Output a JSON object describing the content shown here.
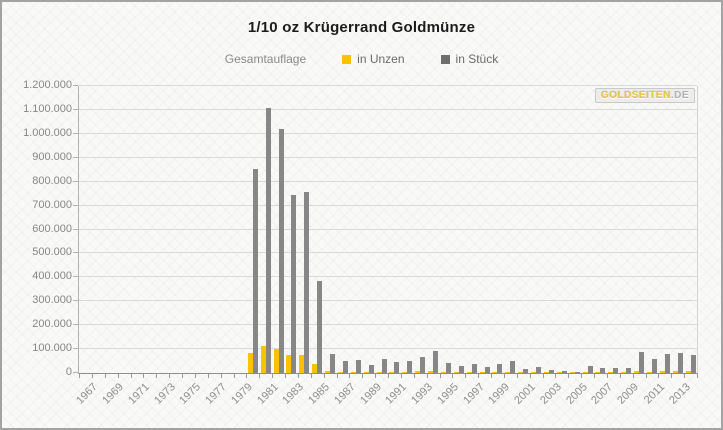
{
  "watermark": {
    "gold": "GOLDSEITEN",
    "de": ".DE"
  },
  "legend": {
    "label": "Gesamtauflage"
  },
  "chart_data": {
    "type": "bar",
    "title": "1/10 oz Krügerrand Goldmünze",
    "subtitle_legend_label": "Gesamtauflage",
    "xlabel": "",
    "ylabel": "",
    "grid": true,
    "legend_position": "top-center",
    "ylim": [
      0,
      1200000
    ],
    "y_tick_interval": 100000,
    "y_tick_labels_bottom_to_top": [
      "0",
      "100.000",
      "200.000",
      "300.000",
      "400.000",
      "500.000",
      "600.000",
      "700.000",
      "800.000",
      "900.000",
      "1.000.000",
      "1.100.000",
      "1.200.000"
    ],
    "x": [
      1967,
      1968,
      1969,
      1970,
      1971,
      1972,
      1973,
      1974,
      1975,
      1976,
      1977,
      1978,
      1979,
      1980,
      1981,
      1982,
      1983,
      1984,
      1985,
      1986,
      1987,
      1988,
      1989,
      1990,
      1991,
      1992,
      1993,
      1994,
      1995,
      1996,
      1997,
      1998,
      1999,
      2000,
      2001,
      2002,
      2003,
      2004,
      2005,
      2006,
      2007,
      2008,
      2009,
      2010,
      2011,
      2012,
      2013,
      2014
    ],
    "x_labeled_years": [
      1967,
      1969,
      1971,
      1973,
      1975,
      1977,
      1979,
      1981,
      1983,
      1985,
      1987,
      1989,
      1991,
      1993,
      1995,
      1997,
      1999,
      2001,
      2003,
      2005,
      2007,
      2009,
      2011,
      2013
    ],
    "series": [
      {
        "name": "in Unzen",
        "color": "#FCC200",
        "values": [
          null,
          null,
          null,
          null,
          null,
          null,
          null,
          null,
          null,
          null,
          null,
          null,
          null,
          85500,
          111000,
          102000,
          74500,
          75700,
          38500,
          7800,
          5200,
          5600,
          3500,
          5700,
          4400,
          5100,
          6700,
          9000,
          4000,
          2800,
          3800,
          2600,
          3800,
          4900,
          1700,
          2600,
          1300,
          900,
          500,
          3000,
          2300,
          2200,
          1900,
          8800,
          5900,
          8100,
          8400,
          7600
        ]
      },
      {
        "name": "in Stück",
        "color": "#878787",
        "values": [
          null,
          null,
          null,
          null,
          null,
          null,
          null,
          null,
          null,
          null,
          null,
          null,
          null,
          855000,
          1110000,
          1020000,
          745000,
          757000,
          385000,
          78000,
          52000,
          56000,
          35000,
          57000,
          44000,
          51000,
          67000,
          90000,
          40000,
          28000,
          38000,
          26000,
          38000,
          49000,
          17000,
          26000,
          13000,
          9000,
          5000,
          30000,
          23000,
          22000,
          19000,
          88000,
          59000,
          81000,
          84000,
          76000
        ]
      }
    ],
    "legend_swatch_colors": {
      "in Unzen": "#FCC200",
      "in Stück": "#6e6e6e"
    }
  }
}
